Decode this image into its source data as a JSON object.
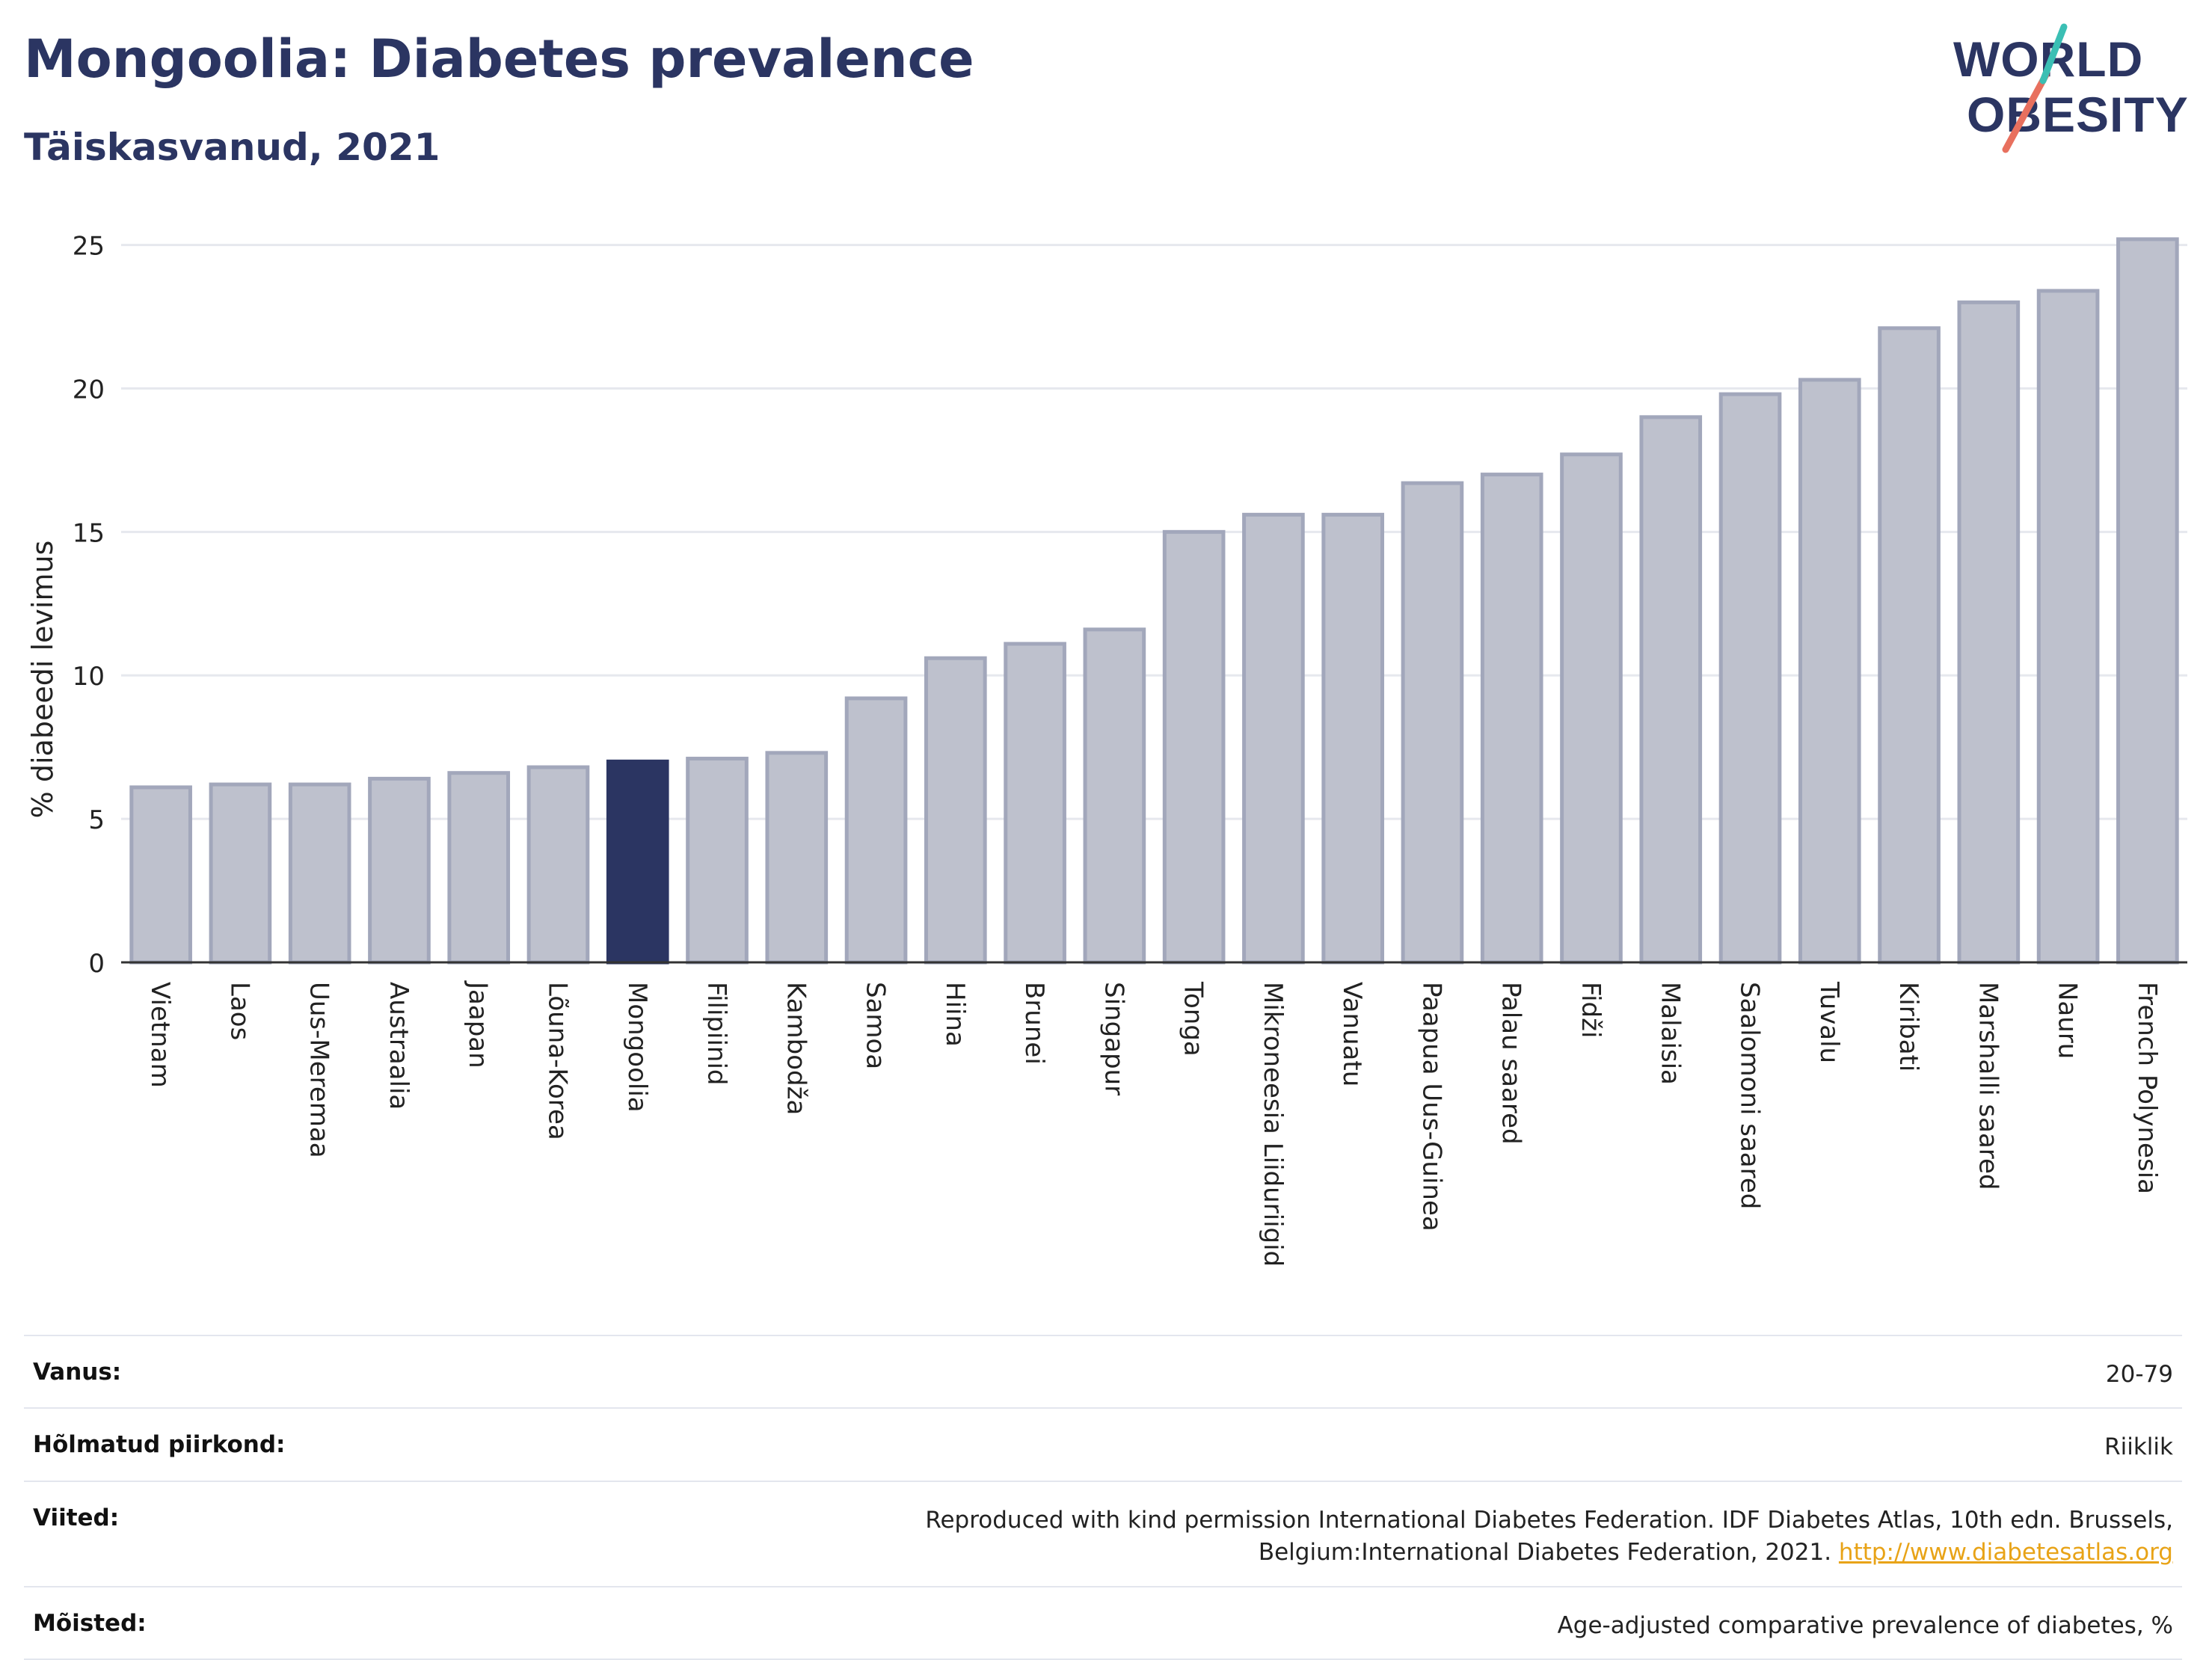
{
  "header": {
    "title": "Mongoolia: Diabetes prevalence",
    "subtitle": "Täiskasvanud, 2021"
  },
  "logo": {
    "line1": "WORLD",
    "line2": "OBESITY",
    "accent_teal": "#3bbfb4",
    "accent_coral": "#e8705e"
  },
  "colors": {
    "highlight": "#2b3562",
    "bar": "#bec1cd",
    "bar_border": "#a2a7bb",
    "text_dark": "#2b3562"
  },
  "chart_data": {
    "type": "bar",
    "title": "Mongoolia: Diabetes prevalence",
    "subtitle": "Täiskasvanud, 2021",
    "ylabel": "% diabeedi levimus",
    "xlabel": "",
    "ylim": [
      0,
      26.5
    ],
    "yticks": [
      0,
      5,
      10,
      15,
      20,
      25
    ],
    "grid": true,
    "highlight": "Mongoolia",
    "categories": [
      "Vietnam",
      "Laos",
      "Uus-Meremaa",
      "Austraalia",
      "Jaapan",
      "Lõuna-Korea",
      "Mongoolia",
      "Filipiinid",
      "Kambodža",
      "Samoa",
      "Hiina",
      "Brunei",
      "Singapur",
      "Tonga",
      "Mikroneesia Liiduriigid",
      "Vanuatu",
      "Paapua Uus-Guinea",
      "Palau saared",
      "Fidži",
      "Malaisia",
      "Saalomoni saared",
      "Tuvalu",
      "Kiribati",
      "Marshalli saared",
      "Nauru",
      "French Polynesia"
    ],
    "values": [
      6.1,
      6.2,
      6.2,
      6.4,
      6.6,
      6.8,
      7.0,
      7.1,
      7.3,
      9.2,
      10.6,
      11.1,
      11.6,
      15.0,
      15.6,
      15.6,
      16.7,
      17.0,
      17.7,
      19.0,
      19.8,
      20.3,
      22.1,
      23.0,
      23.4,
      25.2
    ]
  },
  "meta": {
    "age_label": "Vanus:",
    "age_value": "20-79",
    "region_label": "Hõlmatud piirkond:",
    "region_value": "Riiklik",
    "refs_label": "Viited:",
    "refs_value": "Reproduced with kind permission International Diabetes Federation.  IDF Diabetes Atlas, 10th edn. Brussels, Belgium:International Diabetes Federation, 2021. ",
    "refs_link": "http://www.diabetesatlas.org",
    "defs_label": "Mõisted:",
    "defs_value": "Age-adjusted comparative prevalence of diabetes, %"
  }
}
